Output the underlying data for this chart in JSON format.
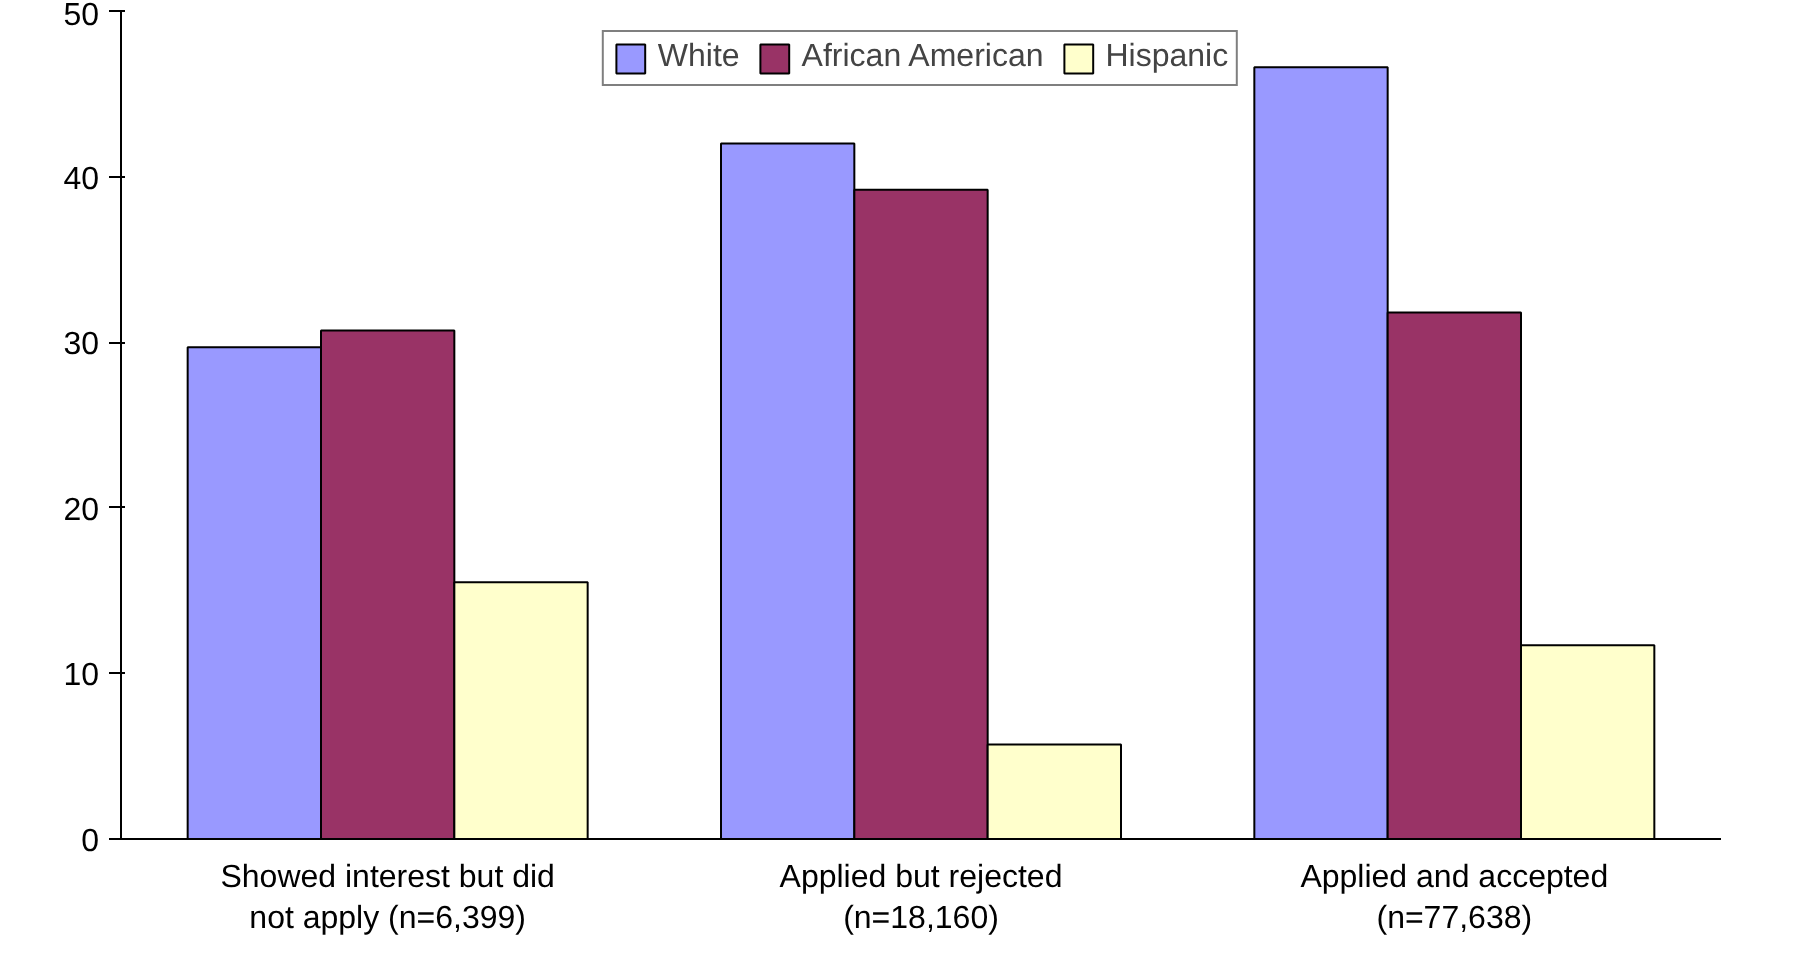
{
  "chart_data": {
    "type": "bar",
    "categories": [
      "Showed interest but did not apply (n=6,399)",
      "Applied but rejected (n=18,160)",
      "Applied and accepted (n=77,638)"
    ],
    "series": [
      {
        "name": "White",
        "color": "#9999ff",
        "values": [
          29.7,
          42.0,
          46.6
        ]
      },
      {
        "name": "African American",
        "color": "#993366",
        "values": [
          30.7,
          39.2,
          31.8
        ]
      },
      {
        "name": "Hispanic",
        "color": "#ffffcc",
        "values": [
          15.5,
          5.7,
          11.7
        ]
      }
    ],
    "ylim": [
      0,
      50
    ],
    "yticks": [
      0,
      10,
      20,
      30,
      40,
      50
    ],
    "grid": false,
    "legend": "top"
  }
}
